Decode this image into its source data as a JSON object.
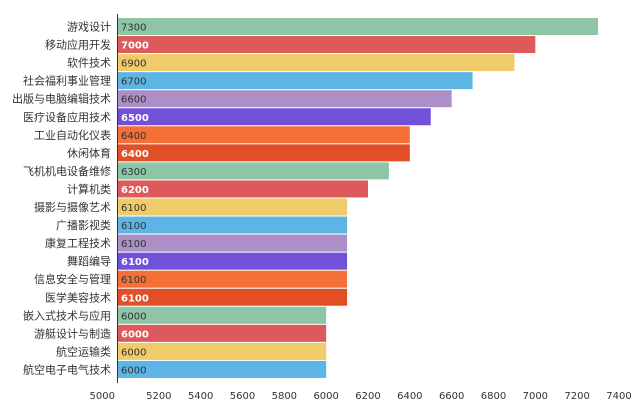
{
  "chart_data": {
    "type": "bar",
    "orientation": "horizontal",
    "categories": [
      "游戏设计",
      "移动应用开发",
      "软件技术",
      "社会福利事业管理",
      "出版与电脑编辑技术",
      "医疗设备应用技术",
      "工业自动化仪表",
      "休闲体育",
      "飞机机电设备维修",
      "计算机类",
      "摄影与摄像艺术",
      "广播影视类",
      "康复工程技术",
      "舞蹈编导",
      "信息安全与管理",
      "医学美容技术",
      "嵌入式技术与应用",
      "游艇设计与制造",
      "航空运输类",
      "航空电子电气技术"
    ],
    "values": [
      7300,
      7000,
      6900,
      6700,
      6600,
      6500,
      6400,
      6400,
      6300,
      6200,
      6100,
      6100,
      6100,
      6100,
      6100,
      6100,
      6000,
      6000,
      6000,
      6000
    ],
    "value_labels": [
      "7300",
      "7000",
      "6900",
      "6700",
      "6600",
      "6500",
      "6400",
      "6400",
      "6300",
      "6200",
      "6100",
      "6100",
      "6100",
      "6100",
      "6100",
      "6100",
      "6000",
      "6000",
      "6000",
      "6000"
    ],
    "xticks": [
      "5000",
      "5200",
      "5400",
      "5600",
      "5800",
      "6000",
      "6200",
      "6400",
      "6600",
      "6800",
      "7000",
      "7200",
      "7400"
    ],
    "xlim": [
      5000,
      7400
    ],
    "grid": false,
    "legend": "none",
    "title": "",
    "xlabel": "",
    "ylabel": "",
    "bar_colors": [
      "#8ec5a5",
      "#dd5a5c",
      "#f0cb69",
      "#5db5e6",
      "#ac8fc7",
      "#7051d8",
      "#f56f38",
      "#e24f26"
    ],
    "label_colors": [
      "#333333",
      "#ffffff",
      "#333333",
      "#333333",
      "#333333",
      "#ffffff",
      "#333333",
      "#ffffff"
    ]
  }
}
